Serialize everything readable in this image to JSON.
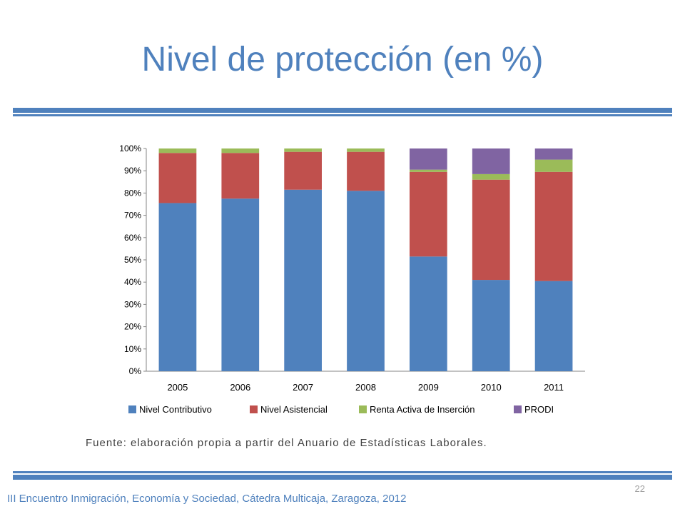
{
  "slide": {
    "title": "Nivel de protección (en %)",
    "source": "Fuente: elaboración propia a partir del Anuario de Estadísticas Laborales.",
    "page_number": "22",
    "footer": "III Encuentro Inmigración, Economía y Sociedad, Cátedra Multicaja, Zaragoza, 2012"
  },
  "colors": {
    "title": "#4f81bd",
    "rule": "#4f81bd",
    "footer": "#4f81bd"
  },
  "chart_data": {
    "type": "bar",
    "stacked": true,
    "normalized": true,
    "categories": [
      "2005",
      "2006",
      "2007",
      "2008",
      "2009",
      "2010",
      "2011"
    ],
    "series": [
      {
        "name": "Nivel Contributivo",
        "color": "#4f81bd",
        "values": [
          75.5,
          77.5,
          81.5,
          81,
          51.5,
          41,
          40.5
        ]
      },
      {
        "name": "Nivel Asistencial",
        "color": "#c0504d",
        "values": [
          22.5,
          20.5,
          17,
          17.5,
          38,
          45,
          49
        ]
      },
      {
        "name": "Renta Activa de Inserción",
        "color": "#9bbb59",
        "values": [
          2,
          2,
          1.5,
          1.5,
          1,
          2.5,
          5.5
        ]
      },
      {
        "name": "PRODI",
        "color": "#8064a2",
        "values": [
          0,
          0,
          0,
          0,
          9.5,
          11.5,
          5
        ]
      }
    ],
    "yticks": [
      "0%",
      "10%",
      "20%",
      "30%",
      "40%",
      "50%",
      "60%",
      "70%",
      "80%",
      "90%",
      "100%"
    ],
    "ylim": [
      0,
      100
    ],
    "grid": false,
    "legend_position": "bottom"
  }
}
